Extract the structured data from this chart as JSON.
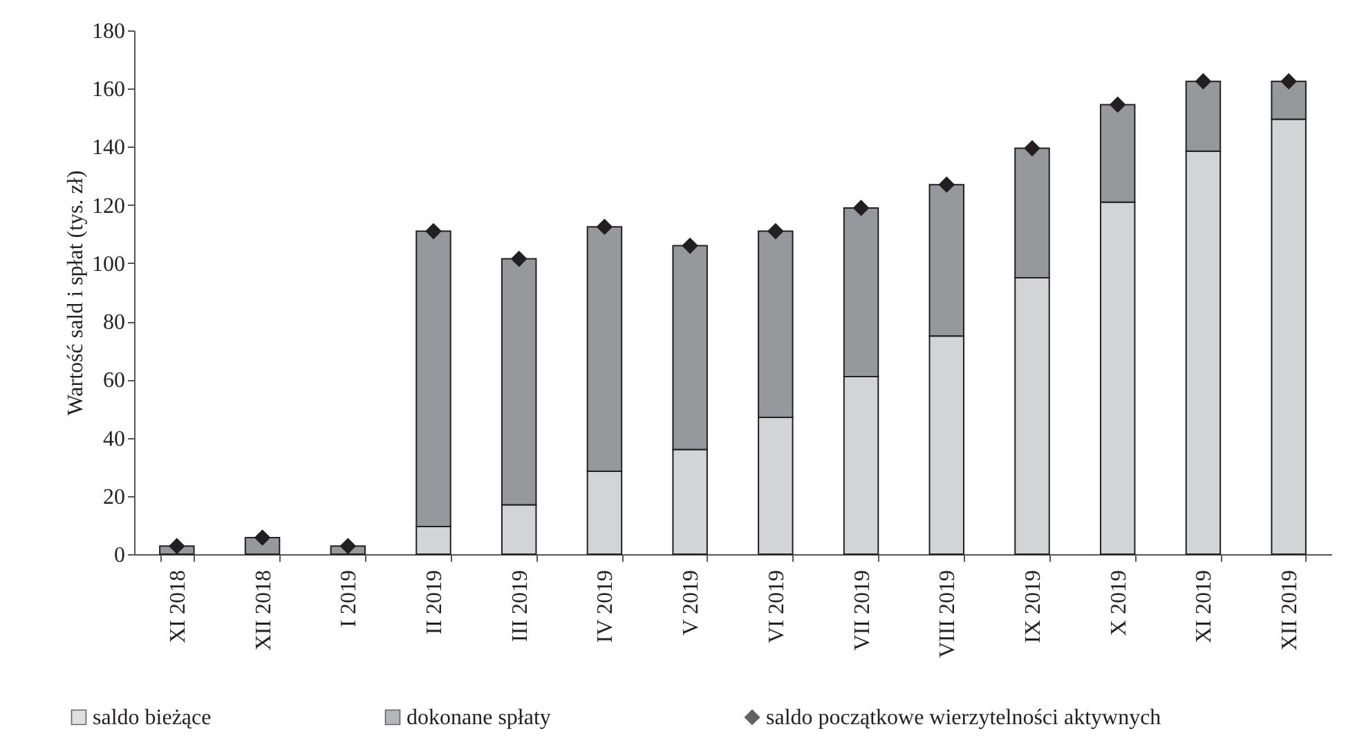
{
  "chart_data": {
    "type": "bar",
    "stacked": true,
    "ylabel": "Wartość sald i spłat (tys. zł)",
    "categories": [
      "XI 2018",
      "XII 2018",
      "I 2019",
      "II 2019",
      "III 2019",
      "IV 2019",
      "V 2019",
      "VI 2019",
      "VII 2019",
      "VIII 2019",
      "IX 2019",
      "X 2019",
      "XI 2019",
      "XII 2019"
    ],
    "series": [
      {
        "name": "saldo bieżące",
        "color": "#d3d4d6",
        "values": [
          0,
          0,
          0,
          9.5,
          17,
          28.5,
          36,
          47,
          61,
          75,
          95,
          121,
          138.5,
          149.5
        ]
      },
      {
        "name": "dokonane spłaty",
        "color": "#97989b",
        "values": [
          2.8,
          5.7,
          2.8,
          101.5,
          84.5,
          84,
          70,
          64,
          58,
          52,
          44.5,
          33.5,
          24,
          13
        ]
      },
      {
        "name": "saldo początkowe wierzytelności aktywnych",
        "color": "#231f20",
        "type": "scatter",
        "marker": "diamond",
        "x": [
          "XI 2018",
          "XII 2018",
          "I 2019",
          "II 2019",
          "III 2019",
          "IV 2019",
          "V 2019",
          "VI 2019",
          "VII 2019",
          "VIII 2019",
          "IX 2019",
          "X 2019",
          "XI 2019",
          "XII 2019"
        ],
        "values": [
          2.8,
          5.7,
          2.8,
          111,
          101.5,
          112.5,
          106,
          111,
          119,
          127,
          139.5,
          154.5,
          162.5,
          162.5
        ]
      }
    ],
    "ylim": [
      0,
      180
    ],
    "yticks": [
      0,
      20,
      40,
      60,
      80,
      100,
      120,
      140,
      160,
      180
    ],
    "grid": false,
    "legend": "bottom"
  }
}
